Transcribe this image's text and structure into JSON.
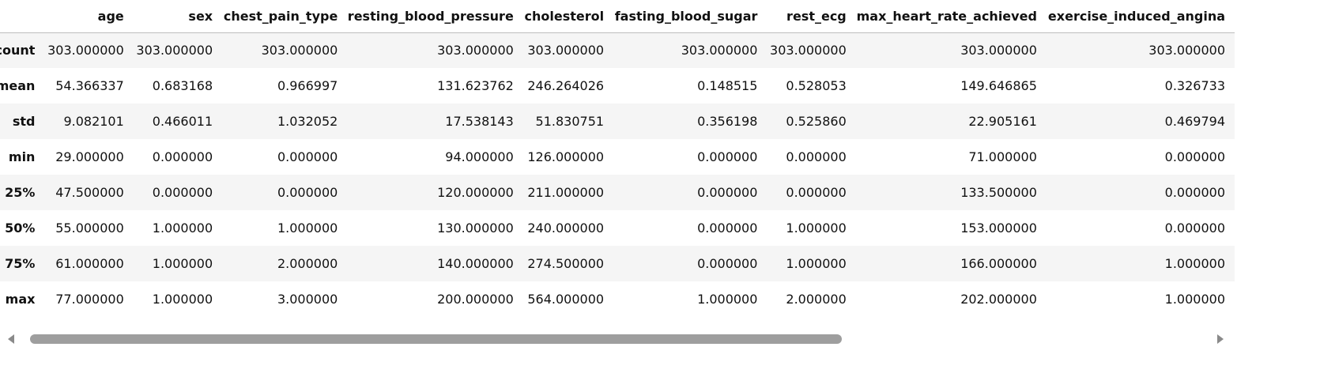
{
  "columns": [
    "",
    "age",
    "sex",
    "chest_pain_type",
    "resting_blood_pressure",
    "cholesterol",
    "fasting_blood_sugar",
    "rest_ecg",
    "max_heart_rate_achieved",
    "exercise_induced_angina"
  ],
  "rows": [
    {
      "label": "count",
      "values": [
        "303.000000",
        "303.000000",
        "303.000000",
        "303.000000",
        "303.000000",
        "303.000000",
        "303.000000",
        "303.000000",
        "303.000000"
      ]
    },
    {
      "label": "mean",
      "values": [
        "54.366337",
        "0.683168",
        "0.966997",
        "131.623762",
        "246.264026",
        "0.148515",
        "0.528053",
        "149.646865",
        "0.326733"
      ]
    },
    {
      "label": "std",
      "values": [
        "9.082101",
        "0.466011",
        "1.032052",
        "17.538143",
        "51.830751",
        "0.356198",
        "0.525860",
        "22.905161",
        "0.469794"
      ]
    },
    {
      "label": "min",
      "values": [
        "29.000000",
        "0.000000",
        "0.000000",
        "94.000000",
        "126.000000",
        "0.000000",
        "0.000000",
        "71.000000",
        "0.000000"
      ]
    },
    {
      "label": "25%",
      "values": [
        "47.500000",
        "0.000000",
        "0.000000",
        "120.000000",
        "211.000000",
        "0.000000",
        "0.000000",
        "133.500000",
        "0.000000"
      ]
    },
    {
      "label": "50%",
      "values": [
        "55.000000",
        "1.000000",
        "1.000000",
        "130.000000",
        "240.000000",
        "0.000000",
        "1.000000",
        "153.000000",
        "0.000000"
      ]
    },
    {
      "label": "75%",
      "values": [
        "61.000000",
        "1.000000",
        "2.000000",
        "140.000000",
        "274.500000",
        "0.000000",
        "1.000000",
        "166.000000",
        "1.000000"
      ]
    },
    {
      "label": "max",
      "values": [
        "77.000000",
        "1.000000",
        "3.000000",
        "200.000000",
        "564.000000",
        "1.000000",
        "2.000000",
        "202.000000",
        "1.000000"
      ]
    }
  ],
  "scrollbar": {
    "left_arrow": "left-arrow-icon",
    "right_arrow": "right-arrow-icon"
  }
}
